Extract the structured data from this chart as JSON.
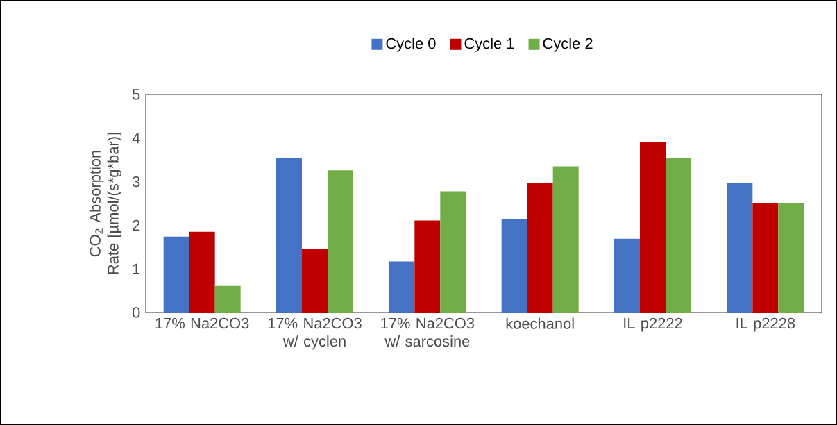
{
  "chart_data": {
    "type": "bar",
    "ylabel": "CO$_{2}$ Absorption Rate [µmol/(s*g*bar)]",
    "categories": [
      "17% Na2CO3",
      "17% Na2CO3 w/ cyclen",
      "17% Na2CO3 w/ sarcosine",
      "koechanol",
      "IL p2222",
      "IL p2228"
    ],
    "series": [
      {
        "name": "Cycle 0",
        "color": "#4472c4",
        "values": [
          1.74,
          3.55,
          1.17,
          2.14,
          1.69,
          2.97
        ]
      },
      {
        "name": "Cycle 1",
        "color": "#c00000",
        "values": [
          1.85,
          1.45,
          2.11,
          2.97,
          3.9,
          2.51
        ]
      },
      {
        "name": "Cycle 2",
        "color": "#70ad47",
        "values": [
          0.61,
          3.26,
          2.78,
          3.35,
          3.55,
          2.51
        ]
      }
    ],
    "ylim": [
      0,
      5
    ],
    "yticks": [
      0,
      1,
      2,
      3,
      4,
      5
    ],
    "grid": false,
    "legend": "top"
  }
}
